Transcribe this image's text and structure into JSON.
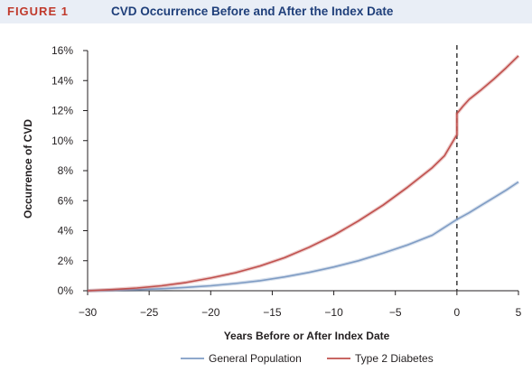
{
  "figure": {
    "label": "FIGURE 1",
    "title": "CVD Occurrence Before and After the Index Date"
  },
  "colors": {
    "general_population": "#7f9cc4",
    "type2_diabetes": "#c0504d",
    "header_bg": "#e9eef6",
    "label_red": "#c0392b",
    "title_blue": "#1f3f7a"
  },
  "chart_data": {
    "type": "line",
    "title": "",
    "xlabel": "Years Before or After Index Date",
    "ylabel": "Occurrence of CVD",
    "xlim": [
      -30,
      5
    ],
    "ylim": [
      0,
      16
    ],
    "x_ticks": [
      -30,
      -25,
      -20,
      -15,
      -10,
      -5,
      0,
      5
    ],
    "x_tick_labels": [
      "−30",
      "−25",
      "−20",
      "−15",
      "−10",
      "−5",
      "0",
      "5"
    ],
    "y_ticks": [
      0,
      2,
      4,
      6,
      8,
      10,
      12,
      14,
      16
    ],
    "y_tick_labels": [
      "0%",
      "2%",
      "4%",
      "6%",
      "8%",
      "10%",
      "12%",
      "14%",
      "16%"
    ],
    "reference_line": {
      "x": 0,
      "style": "dashed"
    },
    "legend_position": "bottom",
    "series": [
      {
        "name": "General Population",
        "x": [
          -30,
          -28,
          -26,
          -24,
          -22,
          -20,
          -18,
          -16,
          -14,
          -12,
          -10,
          -8,
          -6,
          -4,
          -2,
          0,
          1,
          2,
          3,
          4,
          5
        ],
        "y": [
          0,
          0.03,
          0.07,
          0.13,
          0.22,
          0.33,
          0.48,
          0.67,
          0.92,
          1.22,
          1.58,
          2.0,
          2.5,
          3.05,
          3.7,
          4.75,
          5.2,
          5.7,
          6.2,
          6.7,
          7.25
        ]
      },
      {
        "name": "Type 2 Diabetes",
        "x": [
          -30,
          -28,
          -26,
          -24,
          -22,
          -20,
          -18,
          -16,
          -14,
          -12,
          -10,
          -8,
          -6,
          -4,
          -2,
          -1,
          0,
          0,
          0.5,
          1,
          2,
          3,
          4,
          5
        ],
        "y": [
          0,
          0.08,
          0.18,
          0.33,
          0.55,
          0.85,
          1.2,
          1.65,
          2.2,
          2.9,
          3.7,
          4.65,
          5.7,
          6.9,
          8.2,
          9.0,
          10.4,
          11.8,
          12.3,
          12.75,
          13.4,
          14.1,
          14.85,
          15.65
        ]
      }
    ]
  }
}
